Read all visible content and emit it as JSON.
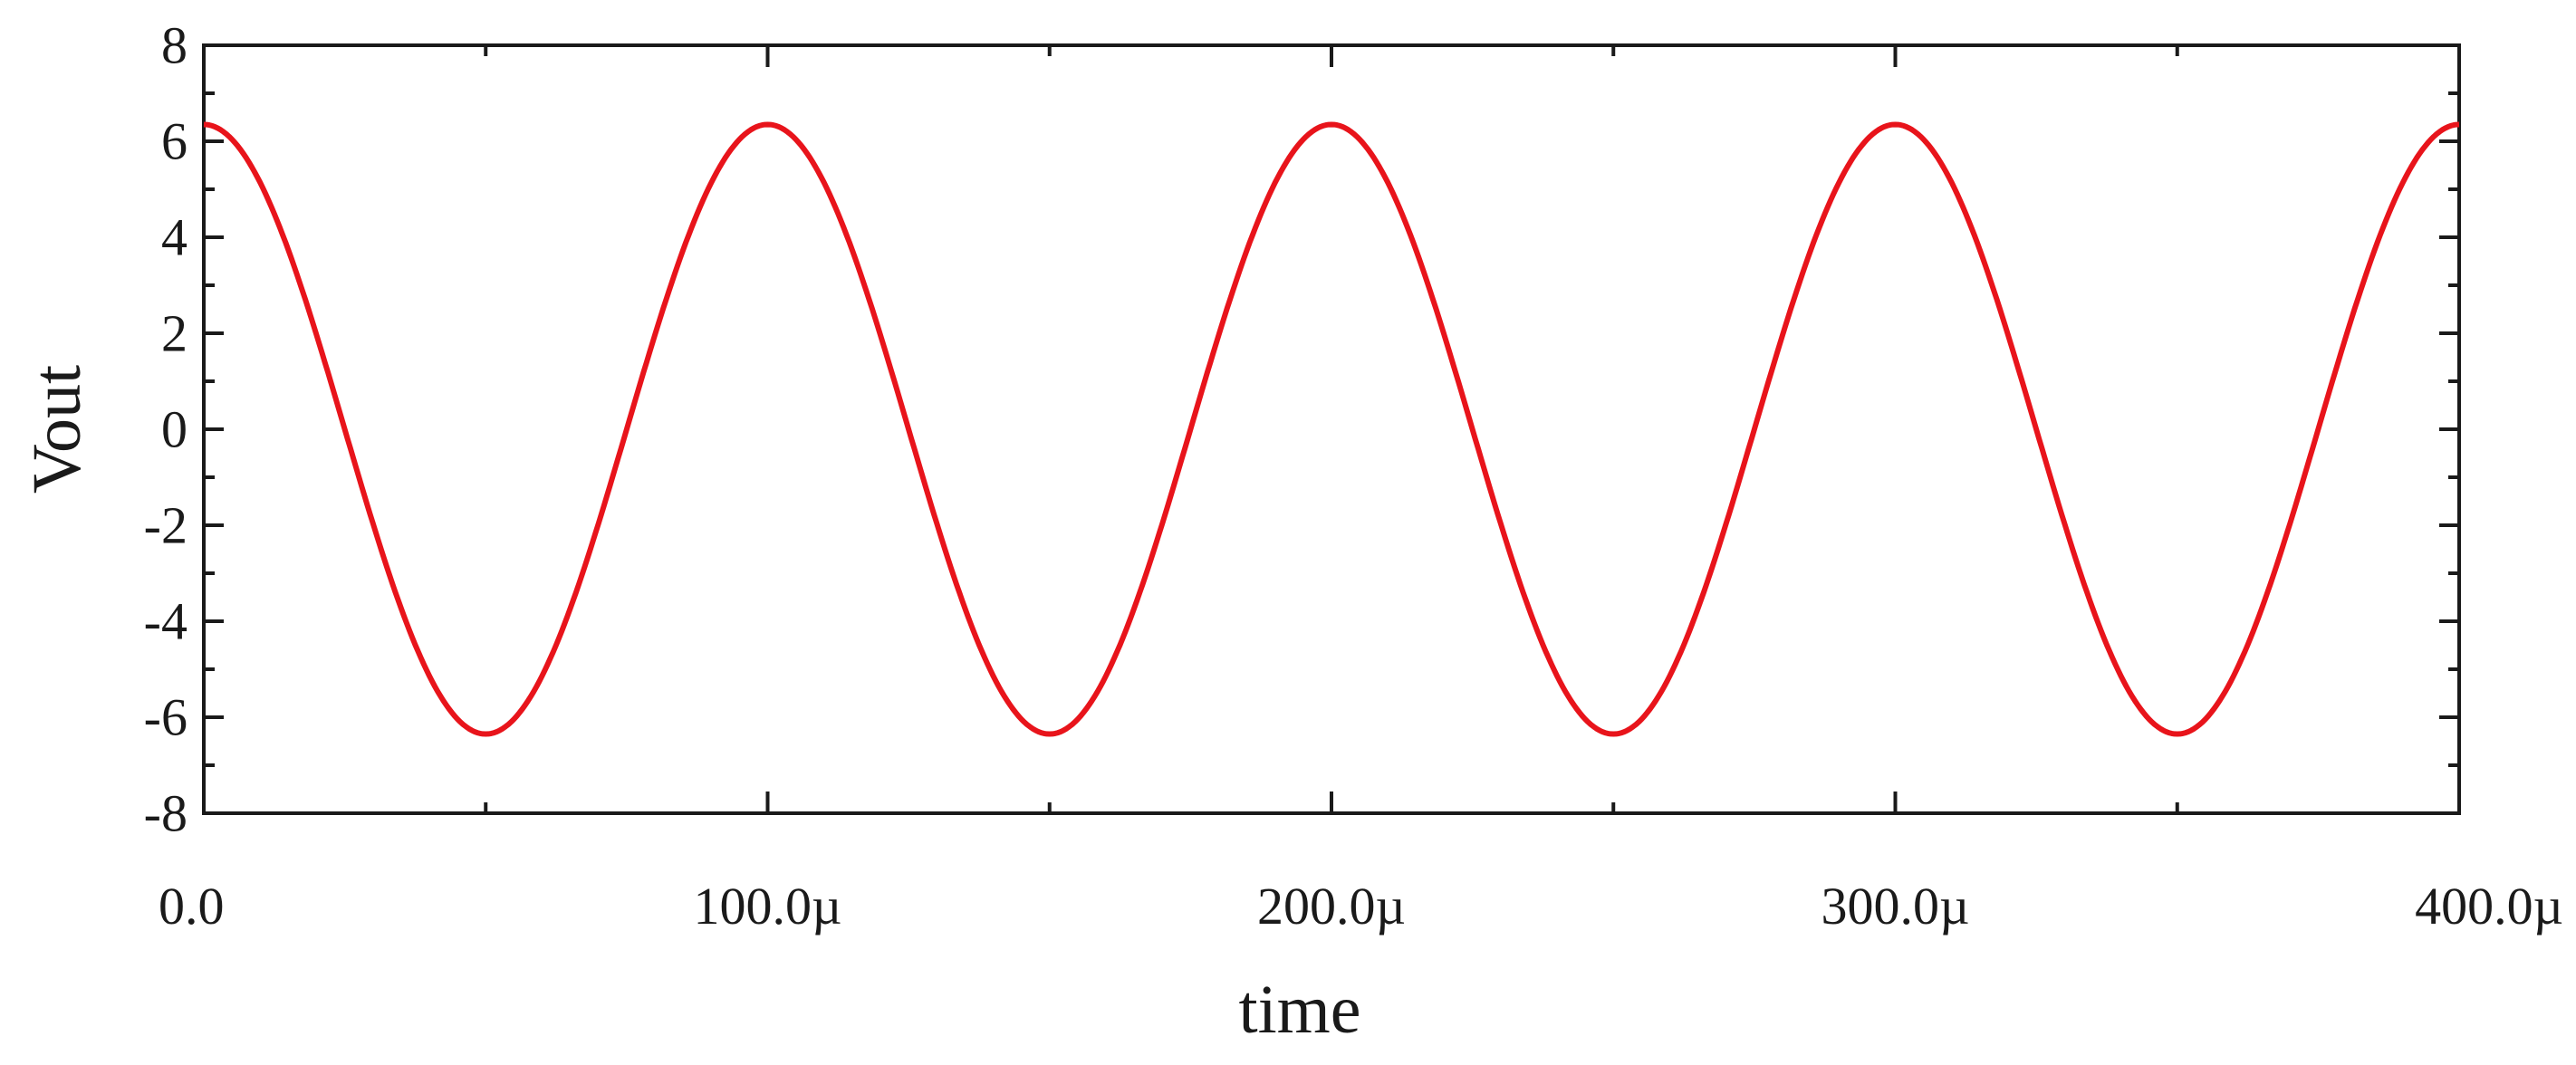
{
  "chart_data": {
    "type": "line",
    "title": "",
    "xlabel": "time",
    "ylabel": "Vout",
    "xlim": [
      0,
      0.0004
    ],
    "ylim": [
      -8,
      8
    ],
    "x_ticks": [
      {
        "value": 0,
        "label": "0.0"
      },
      {
        "value": 0.0001,
        "label": "100.0µ"
      },
      {
        "value": 0.0002,
        "label": "200.0µ"
      },
      {
        "value": 0.0003,
        "label": "300.0µ"
      },
      {
        "value": 0.0004,
        "label": "400.0µ"
      }
    ],
    "y_ticks": [
      {
        "value": -8,
        "label": "-8"
      },
      {
        "value": -6,
        "label": "-6"
      },
      {
        "value": -4,
        "label": "-4"
      },
      {
        "value": -2,
        "label": "-2"
      },
      {
        "value": 0,
        "label": "0"
      },
      {
        "value": 2,
        "label": "2"
      },
      {
        "value": 4,
        "label": "4"
      },
      {
        "value": 6,
        "label": "6"
      },
      {
        "value": 8,
        "label": "8"
      }
    ],
    "grid": false,
    "legend": "none",
    "series": [
      {
        "color": "#e8141b",
        "x": [
          0,
          2.5e-05,
          5e-05,
          7.5e-05,
          0.0001,
          0.000125,
          0.00015,
          0.000175,
          0.0002,
          0.000225,
          0.00025,
          0.000275,
          0.0003,
          0.000325,
          0.00035,
          0.000375,
          0.0004
        ],
        "y": [
          6.35,
          0,
          -6.35,
          0,
          6.35,
          0,
          -6.35,
          0,
          6.35,
          0,
          -6.35,
          0,
          6.35,
          0,
          -6.35,
          0,
          6.35
        ]
      }
    ]
  }
}
